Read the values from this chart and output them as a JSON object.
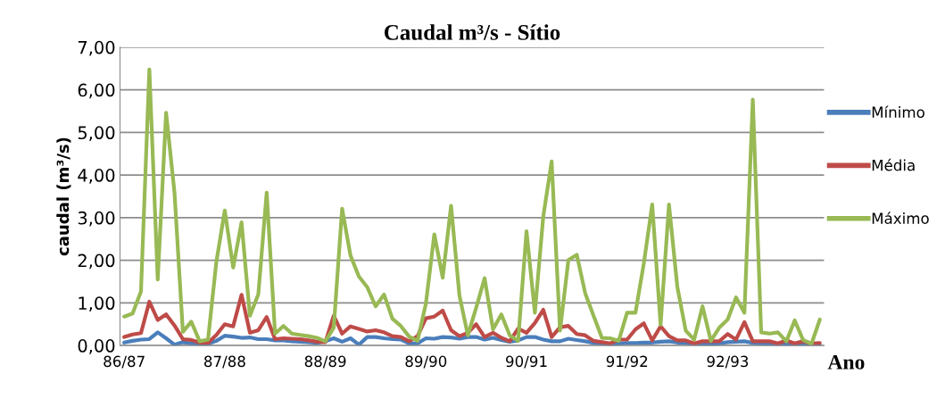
{
  "chart_data": {
    "type": "line",
    "title": "Caudal m³/s - Sítio",
    "xlabel": "Ano",
    "ylabel": "caudal (m³/s)",
    "categories": [
      "86/87",
      null,
      null,
      null,
      null,
      null,
      null,
      null,
      null,
      null,
      null,
      null,
      "87/88",
      null,
      null,
      null,
      null,
      null,
      null,
      null,
      null,
      null,
      null,
      null,
      "88/89",
      null,
      null,
      null,
      null,
      null,
      null,
      null,
      null,
      null,
      null,
      null,
      "89/90",
      null,
      null,
      null,
      null,
      null,
      null,
      null,
      null,
      null,
      null,
      null,
      "90/91",
      null,
      null,
      null,
      null,
      null,
      null,
      null,
      null,
      null,
      null,
      null,
      "91/92",
      null,
      null,
      null,
      null,
      null,
      null,
      null,
      null,
      null,
      null,
      null,
      "92/93",
      null,
      null,
      null,
      null,
      null,
      null,
      null,
      null,
      null,
      null,
      null
    ],
    "series": [
      {
        "name": "Mínimo",
        "color": "#4a7ebb",
        "values": [
          0.07,
          0.11,
          0.14,
          0.15,
          0.31,
          0.17,
          0.02,
          0.08,
          0.05,
          0.04,
          0.04,
          0.11,
          0.23,
          0.21,
          0.18,
          0.19,
          0.15,
          0.15,
          0.12,
          0.12,
          0.1,
          0.09,
          0.08,
          0.06,
          0.1,
          0.17,
          0.09,
          0.17,
          0.02,
          0.2,
          0.2,
          0.17,
          0.15,
          0.14,
          0.05,
          0.05,
          0.17,
          0.16,
          0.2,
          0.19,
          0.16,
          0.2,
          0.2,
          0.14,
          0.18,
          0.13,
          0.09,
          0.12,
          0.2,
          0.2,
          0.14,
          0.1,
          0.1,
          0.16,
          0.13,
          0.1,
          0.06,
          0.05,
          0.01,
          0.05,
          0.06,
          0.06,
          0.07,
          0.07,
          0.09,
          0.1,
          0.07,
          0.06,
          0.04,
          0.03,
          0.03,
          0.05,
          0.08,
          0.09,
          0.1,
          0.06,
          0.05,
          0.04,
          0.02,
          0.02,
          0.0,
          0.02,
          0.01,
          0.0
        ]
      },
      {
        "name": "Média",
        "color": "#be4b48",
        "values": [
          0.2,
          0.26,
          0.29,
          1.03,
          0.6,
          0.73,
          0.47,
          0.15,
          0.13,
          0.07,
          0.06,
          0.25,
          0.5,
          0.45,
          1.19,
          0.3,
          0.36,
          0.67,
          0.15,
          0.17,
          0.16,
          0.15,
          0.12,
          0.09,
          0.08,
          0.7,
          0.28,
          0.45,
          0.39,
          0.33,
          0.36,
          0.31,
          0.22,
          0.2,
          0.1,
          0.22,
          0.64,
          0.68,
          0.82,
          0.36,
          0.22,
          0.3,
          0.5,
          0.2,
          0.3,
          0.18,
          0.1,
          0.4,
          0.3,
          0.53,
          0.84,
          0.2,
          0.43,
          0.46,
          0.27,
          0.24,
          0.11,
          0.08,
          0.05,
          0.14,
          0.14,
          0.38,
          0.52,
          0.12,
          0.45,
          0.22,
          0.12,
          0.12,
          0.05,
          0.1,
          0.1,
          0.1,
          0.27,
          0.14,
          0.55,
          0.1,
          0.1,
          0.1,
          0.05,
          0.12,
          0.05,
          0.1,
          0.05,
          0.06
        ]
      },
      {
        "name": "Máximo",
        "color": "#98b954",
        "values": [
          0.68,
          0.75,
          1.27,
          6.48,
          1.55,
          5.46,
          3.59,
          0.32,
          0.56,
          0.1,
          0.14,
          1.97,
          3.17,
          1.83,
          2.89,
          0.7,
          1.2,
          3.59,
          0.28,
          0.46,
          0.28,
          0.25,
          0.22,
          0.18,
          0.1,
          0.42,
          3.21,
          2.11,
          1.62,
          1.37,
          0.92,
          1.2,
          0.63,
          0.46,
          0.21,
          0.11,
          0.99,
          2.61,
          1.59,
          3.28,
          1.17,
          0.24,
          0.89,
          1.58,
          0.38,
          0.73,
          0.24,
          0.11,
          2.68,
          0.77,
          3.03,
          4.32,
          0.35,
          2.01,
          2.13,
          1.23,
          0.7,
          0.18,
          0.17,
          0.11,
          0.77,
          0.77,
          1.93,
          3.31,
          0.49,
          3.31,
          1.37,
          0.35,
          0.14,
          0.92,
          0.11,
          0.42,
          0.61,
          1.13,
          0.77,
          5.77,
          0.31,
          0.28,
          0.31,
          0.1,
          0.59,
          0.13,
          0.04,
          0.61
        ]
      }
    ],
    "ylim": [
      0,
      7
    ],
    "yticks": [
      {
        "value": 0,
        "label": "0,00"
      },
      {
        "value": 1,
        "label": "1,00"
      },
      {
        "value": 2,
        "label": "2,00"
      },
      {
        "value": 3,
        "label": "3,00"
      },
      {
        "value": 4,
        "label": "4,00"
      },
      {
        "value": 5,
        "label": "5,00"
      },
      {
        "value": 6,
        "label": "6,00"
      },
      {
        "value": 7,
        "label": "7,00"
      }
    ],
    "grid": "y",
    "legend": "right",
    "marker": "none",
    "line_style": "solid"
  }
}
